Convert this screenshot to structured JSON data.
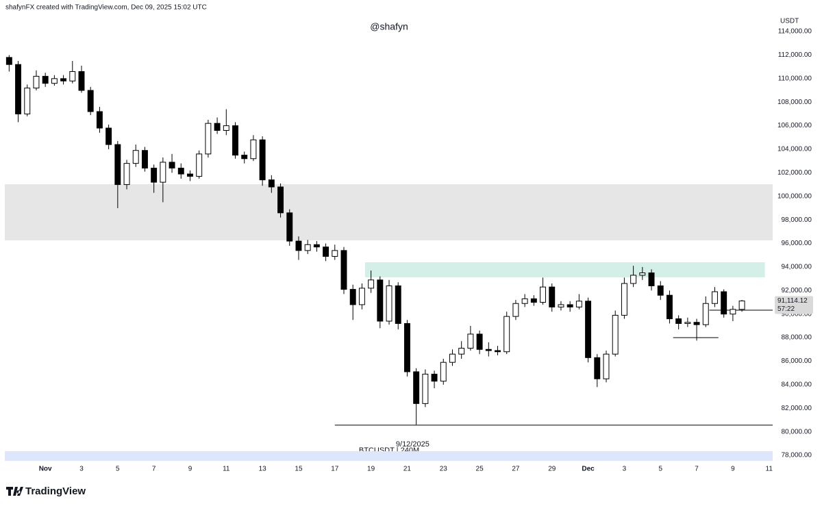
{
  "header": "shafynFX created with TradingView.com, Dec 09, 2025 15:02 UTC",
  "brand": "TradingView",
  "chart_data": {
    "type": "candlestick",
    "title": "@shafyn",
    "y_unit": "USDT",
    "symbol": "BTCUSDT | 240M",
    "annotations": [
      {
        "text": "9/12/2025",
        "x": 20.3,
        "y": 79400
      }
    ],
    "last_price": {
      "value": 91114.12,
      "label": "91,114.12"
    },
    "countdown": "57:22",
    "up_color": "#ffffff",
    "down_color": "#000000",
    "border_color": "#000000",
    "xlim": [
      -2.24,
      40.2
    ],
    "ylim": [
      77420,
      115050
    ],
    "xticks": [
      {
        "value": 0,
        "label": "Nov"
      },
      {
        "value": 2,
        "label": "3"
      },
      {
        "value": 4,
        "label": "5"
      },
      {
        "value": 6,
        "label": "7"
      },
      {
        "value": 8,
        "label": "9"
      },
      {
        "value": 10,
        "label": "11"
      },
      {
        "value": 12,
        "label": "13"
      },
      {
        "value": 14,
        "label": "15"
      },
      {
        "value": 16,
        "label": "17"
      },
      {
        "value": 18,
        "label": "19"
      },
      {
        "value": 20,
        "label": "21"
      },
      {
        "value": 22,
        "label": "23"
      },
      {
        "value": 24,
        "label": "25"
      },
      {
        "value": 26,
        "label": "27"
      },
      {
        "value": 28,
        "label": "29"
      },
      {
        "value": 30,
        "label": "Dec"
      },
      {
        "value": 32,
        "label": "3"
      },
      {
        "value": 34,
        "label": "5"
      },
      {
        "value": 36,
        "label": "7"
      },
      {
        "value": 38,
        "label": "9"
      },
      {
        "value": 40,
        "label": "11"
      }
    ],
    "yticks": [
      {
        "value": 78000,
        "label": "78,000.00"
      },
      {
        "value": 80000,
        "label": "80,000.00"
      },
      {
        "value": 82000,
        "label": "82,000.00"
      },
      {
        "value": 84000,
        "label": "84,000.00"
      },
      {
        "value": 86000,
        "label": "86,000.00"
      },
      {
        "value": 88000,
        "label": "88,000.00"
      },
      {
        "value": 90000,
        "label": "90,000.00"
      },
      {
        "value": 92000,
        "label": "92,000.00"
      },
      {
        "value": 94000,
        "label": "94,000.00"
      },
      {
        "value": 96000,
        "label": "96,000.00"
      },
      {
        "value": 98000,
        "label": "98,000.00"
      },
      {
        "value": 100000,
        "label": "100,000.00"
      },
      {
        "value": 102000,
        "label": "102,000.00"
      },
      {
        "value": 104000,
        "label": "104,000.00"
      },
      {
        "value": 106000,
        "label": "106,000.00"
      },
      {
        "value": 108000,
        "label": "108,000.00"
      },
      {
        "value": 110000,
        "label": "110,000.00"
      },
      {
        "value": 112000,
        "label": "112,000.00"
      },
      {
        "value": 114000,
        "label": "114,000.00"
      }
    ],
    "zones": [
      {
        "ymin": 96260,
        "ymax": 101030,
        "color": "#e6e6e6"
      },
      {
        "ymin": 93120,
        "ymax": 94400,
        "xmin": 17.67,
        "xmax": 39.77,
        "color": "#d3efe7"
      },
      {
        "ymin": 77530,
        "ymax": 78350,
        "color": "#dde6fb"
      }
    ],
    "hlines": [
      {
        "y": 80570,
        "xmin": 16.0,
        "color": "#333333"
      },
      {
        "y": 90330,
        "xmin": 36.7,
        "color": "#333333"
      },
      {
        "y": 88000,
        "xmin": 34.7,
        "xmax": 37.2,
        "color": "#333333"
      }
    ],
    "x": [
      -2,
      -1.5,
      -1,
      -0.5,
      0,
      0.5,
      1,
      1.5,
      2,
      2.5,
      3,
      3.5,
      4,
      4.5,
      5,
      5.5,
      6,
      6.5,
      7,
      7.5,
      8,
      8.5,
      9,
      9.5,
      10,
      10.5,
      11,
      11.5,
      12,
      12.5,
      13,
      13.5,
      14,
      14.5,
      15,
      15.5,
      16,
      16.5,
      17,
      17.5,
      18,
      18.5,
      19,
      19.5,
      20,
      20.5,
      21,
      21.5,
      22,
      22.5,
      23,
      23.5,
      24,
      24.5,
      25,
      25.5,
      26,
      26.5,
      27,
      27.5,
      28,
      28.5,
      29,
      29.5,
      30,
      30.5,
      31,
      31.5,
      32,
      32.5,
      33,
      33.5,
      34,
      34.5,
      35,
      35.5,
      36,
      36.5,
      37,
      37.5,
      38,
      38.5
    ],
    "open": [
      111800,
      111200,
      107000,
      109200,
      110200,
      109600,
      110000,
      109800,
      110600,
      109000,
      107200,
      105800,
      104400,
      101000,
      102800,
      103900,
      102400,
      101200,
      102900,
      102400,
      101900,
      101700,
      103600,
      106200,
      105600,
      106000,
      103500,
      103200,
      104800,
      101400,
      100800,
      98600,
      96200,
      95400,
      95900,
      95700,
      94900,
      95400,
      92100,
      90800,
      92200,
      92900,
      89400,
      92400,
      89200,
      85100,
      82400,
      84900,
      84300,
      85900,
      86600,
      87100,
      88300,
      87000,
      86900,
      86800,
      89800,
      90900,
      91300,
      91000,
      92300,
      90600,
      90800,
      90600,
      91100,
      86300,
      84500,
      86600,
      89900,
      92600,
      93300,
      93500,
      92400,
      91600,
      89600,
      89200,
      89300,
      89100,
      90900,
      91900,
      90000,
      90400
    ],
    "high": [
      112000,
      111500,
      109500,
      110700,
      110500,
      110300,
      110300,
      111500,
      111100,
      109300,
      107600,
      106100,
      104700,
      103100,
      104400,
      104200,
      102700,
      103300,
      103600,
      102800,
      102200,
      103900,
      106500,
      106700,
      107400,
      106300,
      103800,
      105200,
      105100,
      101800,
      101100,
      98900,
      96600,
      96300,
      96200,
      96000,
      95900,
      95700,
      92500,
      92600,
      93700,
      93200,
      92900,
      92700,
      89500,
      85400,
      85300,
      85200,
      86200,
      87000,
      87700,
      89000,
      88600,
      87600,
      87300,
      90200,
      91200,
      91700,
      91600,
      93100,
      92600,
      91100,
      91100,
      91700,
      91400,
      86600,
      86900,
      90300,
      93100,
      94100,
      94000,
      93800,
      92800,
      92000,
      89900,
      89700,
      89600,
      91500,
      92300,
      92100,
      90700,
      91200
    ],
    "low": [
      110600,
      106300,
      106800,
      109000,
      109300,
      109400,
      109500,
      109600,
      108800,
      106900,
      105400,
      104000,
      99000,
      100600,
      102500,
      102100,
      100300,
      99500,
      102000,
      101500,
      101300,
      101500,
      103300,
      105300,
      105200,
      103200,
      102800,
      103000,
      100900,
      100300,
      98200,
      95800,
      94600,
      95100,
      95300,
      94500,
      94600,
      91700,
      89500,
      90400,
      91800,
      88800,
      89100,
      88700,
      84700,
      80600,
      82100,
      83700,
      84000,
      85600,
      86200,
      86900,
      86600,
      86400,
      86500,
      86600,
      89500,
      90600,
      90700,
      90800,
      90200,
      90300,
      90200,
      90400,
      85900,
      83800,
      84200,
      86400,
      89600,
      92300,
      92900,
      92000,
      91200,
      89200,
      88700,
      88900,
      87750,
      88900,
      90600,
      89700,
      89400,
      90200
    ],
    "close": [
      111200,
      107000,
      109200,
      110200,
      109600,
      110000,
      109800,
      110600,
      109000,
      107200,
      105800,
      104400,
      101000,
      102800,
      103900,
      102400,
      101200,
      102900,
      102400,
      101900,
      101700,
      103600,
      106200,
      105600,
      106000,
      103500,
      103200,
      104800,
      101400,
      100800,
      98600,
      96200,
      95400,
      95900,
      95700,
      94900,
      95400,
      92100,
      90800,
      92200,
      92900,
      89400,
      92400,
      89200,
      85100,
      82400,
      84900,
      84300,
      85900,
      86600,
      87100,
      88300,
      87000,
      86900,
      86800,
      89800,
      90900,
      91300,
      91000,
      92300,
      90600,
      90800,
      90600,
      91100,
      86300,
      84500,
      86600,
      89900,
      92600,
      93300,
      93500,
      92400,
      91600,
      89600,
      89200,
      89300,
      89100,
      90900,
      91900,
      90000,
      90400,
      91114.12
    ]
  }
}
